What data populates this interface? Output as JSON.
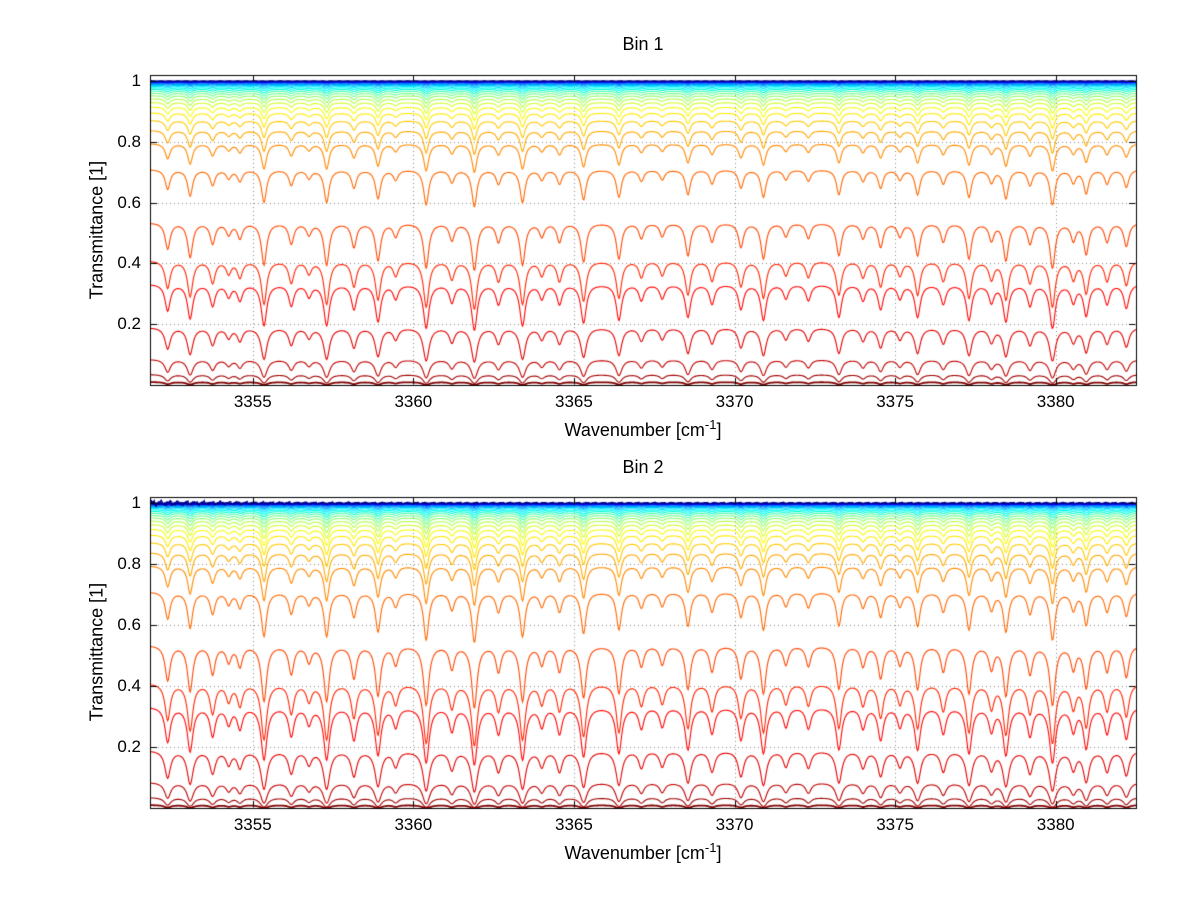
{
  "figure": {
    "background": "#ffffff"
  },
  "chart_data": [
    {
      "type": "line",
      "title": "Bin 1",
      "xlabel_base": "Wavenumber [cm",
      "xlabel_sup": "-1",
      "xlabel_close": "]",
      "ylabel": "Transmittance [1]",
      "xlim": [
        3351.8,
        3382.5
      ],
      "ylim": [
        0,
        1.02
      ],
      "xticks": [
        3355,
        3360,
        3365,
        3370,
        3375,
        3380
      ],
      "xtick_labels": [
        "3355",
        "3360",
        "3365",
        "3370",
        "3375",
        "3380"
      ],
      "yticks": [
        0.2,
        0.4,
        0.6,
        0.8,
        1
      ],
      "ytick_labels": [
        "0.2",
        "0.4",
        "0.6",
        "0.8",
        "1"
      ],
      "grid": true,
      "legend": false,
      "line_halfwidth": 0.09,
      "top_noise": 0.0012,
      "noise_left": false,
      "series": [
        {
          "base": 1.0,
          "color": "#000080"
        },
        {
          "base": 0.9996,
          "color": "#0000A0"
        },
        {
          "base": 0.9991,
          "color": "#0000C1"
        },
        {
          "base": 0.9985,
          "color": "#0000E2"
        },
        {
          "base": 0.9977,
          "color": "#0004FF"
        },
        {
          "base": 0.9967,
          "color": "#0025FF"
        },
        {
          "base": 0.9954,
          "color": "#0046FF"
        },
        {
          "base": 0.9938,
          "color": "#0067FF"
        },
        {
          "base": 0.9918,
          "color": "#0088FF"
        },
        {
          "base": 0.9893,
          "color": "#00A9FF"
        },
        {
          "base": 0.9862,
          "color": "#00C9FF"
        },
        {
          "base": 0.9824,
          "color": "#00EAFF"
        },
        {
          "base": 0.978,
          "color": "#00FFF3"
        },
        {
          "base": 0.973,
          "color": "#00FFD2"
        },
        {
          "base": 0.967,
          "color": "#4EFFB1"
        },
        {
          "base": 0.96,
          "color": "#6FFF90"
        },
        {
          "base": 0.952,
          "color": "#90FF6F"
        },
        {
          "base": 0.942,
          "color": "#B1FF4E"
        },
        {
          "base": 0.93,
          "color": "#D2FF2D"
        },
        {
          "base": 0.915,
          "color": "#F3FF0C"
        },
        {
          "base": 0.896,
          "color": "#FFEA00"
        },
        {
          "base": 0.871,
          "color": "#FFC900"
        },
        {
          "base": 0.838,
          "color": "#FFA900"
        },
        {
          "base": 0.795,
          "color": "#FF8800"
        },
        {
          "base": 0.71,
          "color": "#FF6700"
        },
        {
          "base": 0.535,
          "color": "#FF4600"
        },
        {
          "base": 0.41,
          "color": "#FF2500"
        },
        {
          "base": 0.333,
          "color": "#FF0400"
        },
        {
          "base": 0.19,
          "color": "#E20000"
        },
        {
          "base": 0.085,
          "color": "#C10000"
        },
        {
          "base": 0.035,
          "color": "#A00000"
        },
        {
          "base": 0.01,
          "color": "#800000",
          "width": 1.8
        }
      ],
      "absorption_lines": [
        [
          3352.35,
          0.28
        ],
        [
          3353.05,
          0.38
        ],
        [
          3353.75,
          0.22
        ],
        [
          3354.25,
          0.12
        ],
        [
          3354.6,
          0.16
        ],
        [
          3355.35,
          0.48
        ],
        [
          3356.2,
          0.22
        ],
        [
          3356.75,
          0.12
        ],
        [
          3357.3,
          0.48
        ],
        [
          3358.15,
          0.26
        ],
        [
          3358.9,
          0.42
        ],
        [
          3359.45,
          0.14
        ],
        [
          3360.4,
          0.52
        ],
        [
          3361.2,
          0.18
        ],
        [
          3361.9,
          0.55
        ],
        [
          3362.65,
          0.2
        ],
        [
          3363.4,
          0.48
        ],
        [
          3364.0,
          0.14
        ],
        [
          3364.55,
          0.2
        ],
        [
          3365.3,
          0.44
        ],
        [
          3366.4,
          0.4
        ],
        [
          3367.1,
          0.16
        ],
        [
          3367.75,
          0.14
        ],
        [
          3368.55,
          0.36
        ],
        [
          3369.3,
          0.2
        ],
        [
          3370.2,
          0.26
        ],
        [
          3370.9,
          0.4
        ],
        [
          3371.6,
          0.14
        ],
        [
          3372.3,
          0.16
        ],
        [
          3373.25,
          0.36
        ],
        [
          3374.0,
          0.16
        ],
        [
          3374.55,
          0.26
        ],
        [
          3375.15,
          0.14
        ],
        [
          3375.7,
          0.36
        ],
        [
          3376.5,
          0.2
        ],
        [
          3377.3,
          0.4
        ],
        [
          3378.0,
          0.18
        ],
        [
          3378.45,
          0.42
        ],
        [
          3379.2,
          0.22
        ],
        [
          3379.9,
          0.52
        ],
        [
          3380.55,
          0.18
        ],
        [
          3380.95,
          0.34
        ],
        [
          3381.6,
          0.2
        ],
        [
          3382.2,
          0.25
        ]
      ]
    },
    {
      "type": "line",
      "title": "Bin 2",
      "xlabel_base": "Wavenumber [cm",
      "xlabel_sup": "-1",
      "xlabel_close": "]",
      "ylabel": "Transmittance [1]",
      "xlim": [
        3351.8,
        3382.5
      ],
      "ylim": [
        0,
        1.02
      ],
      "xticks": [
        3355,
        3360,
        3365,
        3370,
        3375,
        3380
      ],
      "xtick_labels": [
        "3355",
        "3360",
        "3365",
        "3370",
        "3375",
        "3380"
      ],
      "yticks": [
        0.2,
        0.4,
        0.6,
        0.8,
        1
      ],
      "ytick_labels": [
        "0.2",
        "0.4",
        "0.6",
        "0.8",
        "1"
      ],
      "grid": true,
      "legend": false,
      "line_halfwidth": 0.09,
      "top_noise": 0.0035,
      "noise_left": true,
      "series": [
        {
          "base": 1.0,
          "color": "#000080"
        },
        {
          "base": 0.9996,
          "color": "#0000A0"
        },
        {
          "base": 0.9991,
          "color": "#0000C1"
        },
        {
          "base": 0.9985,
          "color": "#0000E2"
        },
        {
          "base": 0.9977,
          "color": "#0004FF"
        },
        {
          "base": 0.9967,
          "color": "#0025FF"
        },
        {
          "base": 0.9954,
          "color": "#0046FF"
        },
        {
          "base": 0.9938,
          "color": "#0067FF"
        },
        {
          "base": 0.9918,
          "color": "#0088FF"
        },
        {
          "base": 0.9893,
          "color": "#00A9FF"
        },
        {
          "base": 0.9862,
          "color": "#00C9FF"
        },
        {
          "base": 0.9824,
          "color": "#00EAFF"
        },
        {
          "base": 0.978,
          "color": "#00FFF3"
        },
        {
          "base": 0.973,
          "color": "#00FFD2"
        },
        {
          "base": 0.967,
          "color": "#4EFFB1"
        },
        {
          "base": 0.96,
          "color": "#6FFF90"
        },
        {
          "base": 0.952,
          "color": "#90FF6F"
        },
        {
          "base": 0.942,
          "color": "#B1FF4E"
        },
        {
          "base": 0.93,
          "color": "#D2FF2D"
        },
        {
          "base": 0.915,
          "color": "#F3FF0C"
        },
        {
          "base": 0.896,
          "color": "#FFEA00"
        },
        {
          "base": 0.871,
          "color": "#FFC900"
        },
        {
          "base": 0.838,
          "color": "#FFA900"
        },
        {
          "base": 0.795,
          "color": "#FF8800"
        },
        {
          "base": 0.71,
          "color": "#FF6700"
        },
        {
          "base": 0.535,
          "color": "#FF4600"
        },
        {
          "base": 0.41,
          "color": "#FF2500"
        },
        {
          "base": 0.333,
          "color": "#FF0400"
        },
        {
          "base": 0.19,
          "color": "#E20000"
        },
        {
          "base": 0.085,
          "color": "#C10000"
        },
        {
          "base": 0.035,
          "color": "#A00000"
        },
        {
          "base": 0.01,
          "color": "#800000",
          "width": 1.8
        }
      ],
      "absorption_lines": [
        [
          3352.35,
          0.39
        ],
        [
          3353.05,
          0.53
        ],
        [
          3353.75,
          0.31
        ],
        [
          3354.25,
          0.17
        ],
        [
          3354.6,
          0.22
        ],
        [
          3355.35,
          0.67
        ],
        [
          3356.2,
          0.31
        ],
        [
          3356.75,
          0.17
        ],
        [
          3357.3,
          0.67
        ],
        [
          3358.15,
          0.36
        ],
        [
          3358.9,
          0.59
        ],
        [
          3359.45,
          0.2
        ],
        [
          3360.4,
          0.73
        ],
        [
          3361.2,
          0.25
        ],
        [
          3361.9,
          0.77
        ],
        [
          3362.65,
          0.28
        ],
        [
          3363.4,
          0.67
        ],
        [
          3364.0,
          0.2
        ],
        [
          3364.55,
          0.28
        ],
        [
          3365.3,
          0.62
        ],
        [
          3366.4,
          0.56
        ],
        [
          3367.1,
          0.22
        ],
        [
          3367.75,
          0.2
        ],
        [
          3368.55,
          0.5
        ],
        [
          3369.3,
          0.28
        ],
        [
          3370.2,
          0.36
        ],
        [
          3370.9,
          0.56
        ],
        [
          3371.6,
          0.2
        ],
        [
          3372.3,
          0.22
        ],
        [
          3373.25,
          0.5
        ],
        [
          3374.0,
          0.22
        ],
        [
          3374.55,
          0.36
        ],
        [
          3375.15,
          0.2
        ],
        [
          3375.7,
          0.5
        ],
        [
          3376.5,
          0.28
        ],
        [
          3377.3,
          0.56
        ],
        [
          3378.0,
          0.25
        ],
        [
          3378.45,
          0.59
        ],
        [
          3379.2,
          0.31
        ],
        [
          3379.9,
          0.73
        ],
        [
          3380.55,
          0.25
        ],
        [
          3380.95,
          0.48
        ],
        [
          3381.6,
          0.28
        ],
        [
          3382.2,
          0.35
        ]
      ]
    }
  ]
}
